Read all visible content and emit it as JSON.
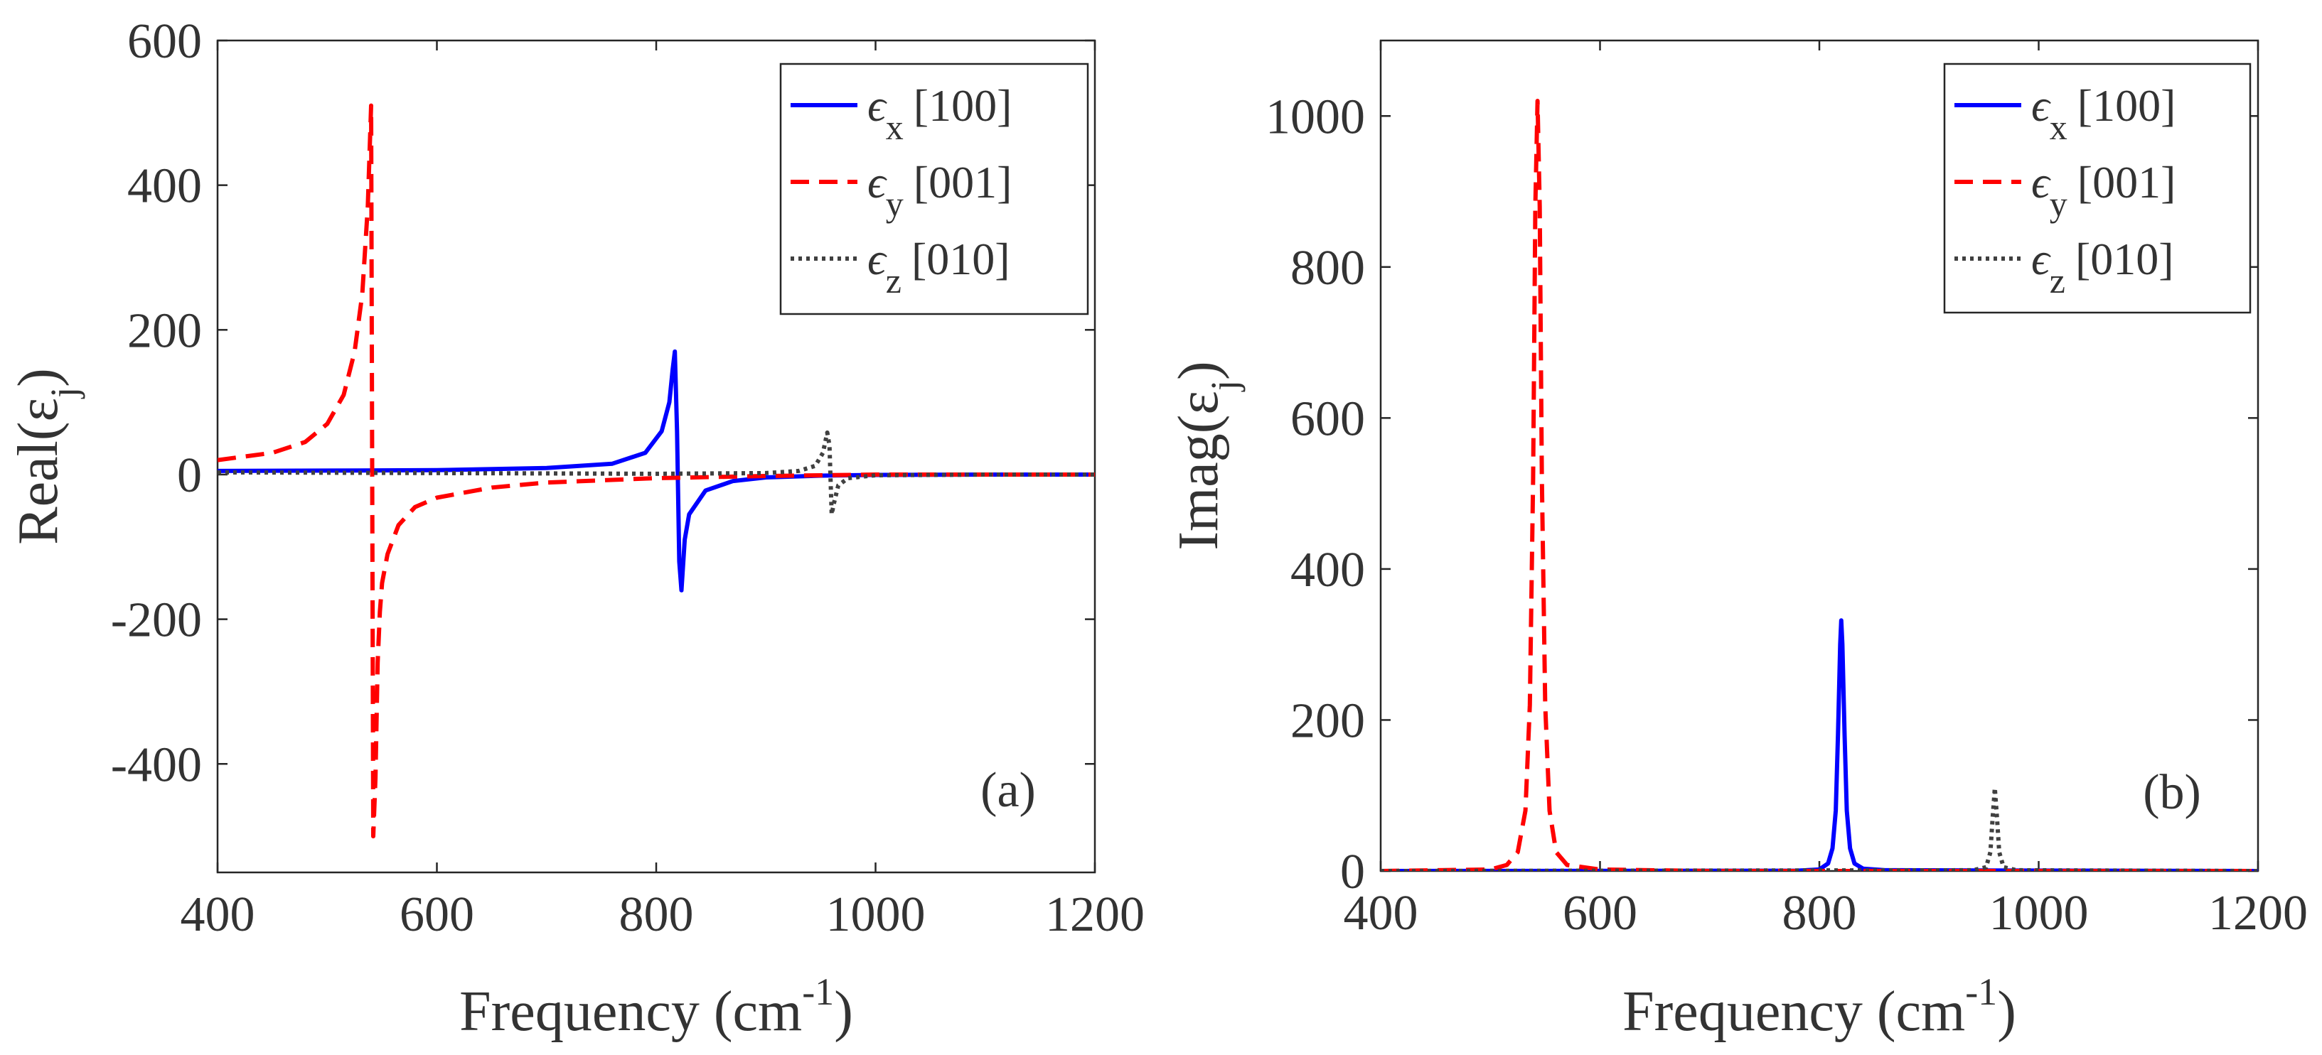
{
  "chart_data": [
    {
      "type": "line",
      "panel_label": "(a)",
      "xlabel": "Frequency (cm",
      "xlabel_sup": "-1",
      "xlabel_end": ")",
      "ylabel": "Real(ε",
      "ylabel_sub": "j",
      "ylabel_end": ")",
      "xlim": [
        400,
        1200
      ],
      "ylim": [
        -550,
        600
      ],
      "xticks": [
        400,
        600,
        800,
        1000,
        1200
      ],
      "yticks": [
        -400,
        -200,
        0,
        200,
        400,
        600
      ],
      "grid": false,
      "legend_position": "top-right",
      "series": [
        {
          "name": "ϵx [100]",
          "sym": "ϵ",
          "sub": "x",
          "dir": "[100]",
          "color": "#0000ff",
          "style": "solid",
          "x": [
            400,
            500,
            600,
            700,
            760,
            790,
            805,
            812,
            815,
            817,
            819,
            821,
            823,
            826,
            830,
            845,
            870,
            900,
            950,
            1000,
            1100,
            1200
          ],
          "y": [
            5,
            5.5,
            6,
            9,
            15,
            30,
            60,
            100,
            145,
            170,
            60,
            -120,
            -160,
            -90,
            -55,
            -22,
            -9,
            -4,
            -1.5,
            -0.5,
            0,
            0
          ]
        },
        {
          "name": "ϵy [001]",
          "sym": "ϵ",
          "sub": "y",
          "dir": "[001]",
          "color": "#ff0000",
          "style": "dashed",
          "x": [
            400,
            450,
            480,
            500,
            515,
            525,
            532,
            537,
            540,
            542,
            544,
            546,
            548,
            550,
            555,
            565,
            580,
            600,
            650,
            700,
            800,
            900,
            1000,
            1100,
            1200
          ],
          "y": [
            20,
            30,
            45,
            70,
            110,
            170,
            250,
            370,
            510,
            -500,
            -420,
            -260,
            -190,
            -150,
            -110,
            -70,
            -45,
            -32,
            -18,
            -11,
            -5,
            -2,
            0,
            0,
            0
          ]
        },
        {
          "name": "ϵz [010]",
          "sym": "ϵ",
          "sub": "z",
          "dir": "[010]",
          "color": "#404040",
          "style": "dotted",
          "x": [
            400,
            600,
            800,
            900,
            930,
            945,
            952,
            956,
            958,
            960,
            962,
            966,
            975,
            1000,
            1100,
            1200
          ],
          "y": [
            3,
            2,
            1,
            2,
            5,
            12,
            30,
            58,
            40,
            -55,
            -40,
            -15,
            -5,
            -1,
            0,
            0
          ]
        }
      ]
    },
    {
      "type": "line",
      "panel_label": "(b)",
      "xlabel": "Frequency (cm",
      "xlabel_sup": "-1",
      "xlabel_end": ")",
      "ylabel": "Imag(ε",
      "ylabel_sub": "j",
      "ylabel_end": ")",
      "xlim": [
        400,
        1200
      ],
      "ylim": [
        0,
        1100
      ],
      "xticks": [
        400,
        600,
        800,
        1000,
        1200
      ],
      "yticks": [
        0,
        200,
        400,
        600,
        800,
        1000
      ],
      "grid": false,
      "legend_position": "top-right",
      "series": [
        {
          "name": "ϵx [100]",
          "sym": "ϵ",
          "sub": "x",
          "dir": "[100]",
          "color": "#0000ff",
          "style": "solid",
          "x": [
            400,
            780,
            800,
            808,
            812,
            815,
            817,
            819,
            820,
            821,
            823,
            825,
            828,
            832,
            840,
            860,
            1200
          ],
          "y": [
            0,
            0.5,
            2,
            10,
            30,
            80,
            180,
            300,
            332,
            300,
            180,
            80,
            30,
            10,
            3,
            1,
            0
          ]
        },
        {
          "name": "ϵy [001]",
          "sym": "ϵ",
          "sub": "y",
          "dir": "[001]",
          "color": "#ff0000",
          "style": "dashed",
          "x": [
            400,
            500,
            515,
            525,
            532,
            536,
            539,
            541,
            543,
            545,
            547,
            550,
            554,
            560,
            570,
            600,
            700,
            1200
          ],
          "y": [
            0,
            2,
            8,
            25,
            80,
            220,
            520,
            880,
            1020,
            880,
            520,
            220,
            80,
            25,
            8,
            2,
            0,
            0
          ]
        },
        {
          "name": "ϵz [010]",
          "sym": "ϵ",
          "sub": "z",
          "dir": "[010]",
          "color": "#404040",
          "style": "dotted",
          "x": [
            400,
            940,
            952,
            956,
            958,
            960,
            962,
            964,
            968,
            980,
            1200
          ],
          "y": [
            0,
            1,
            5,
            25,
            70,
            110,
            70,
            25,
            5,
            1,
            0
          ]
        }
      ]
    }
  ]
}
